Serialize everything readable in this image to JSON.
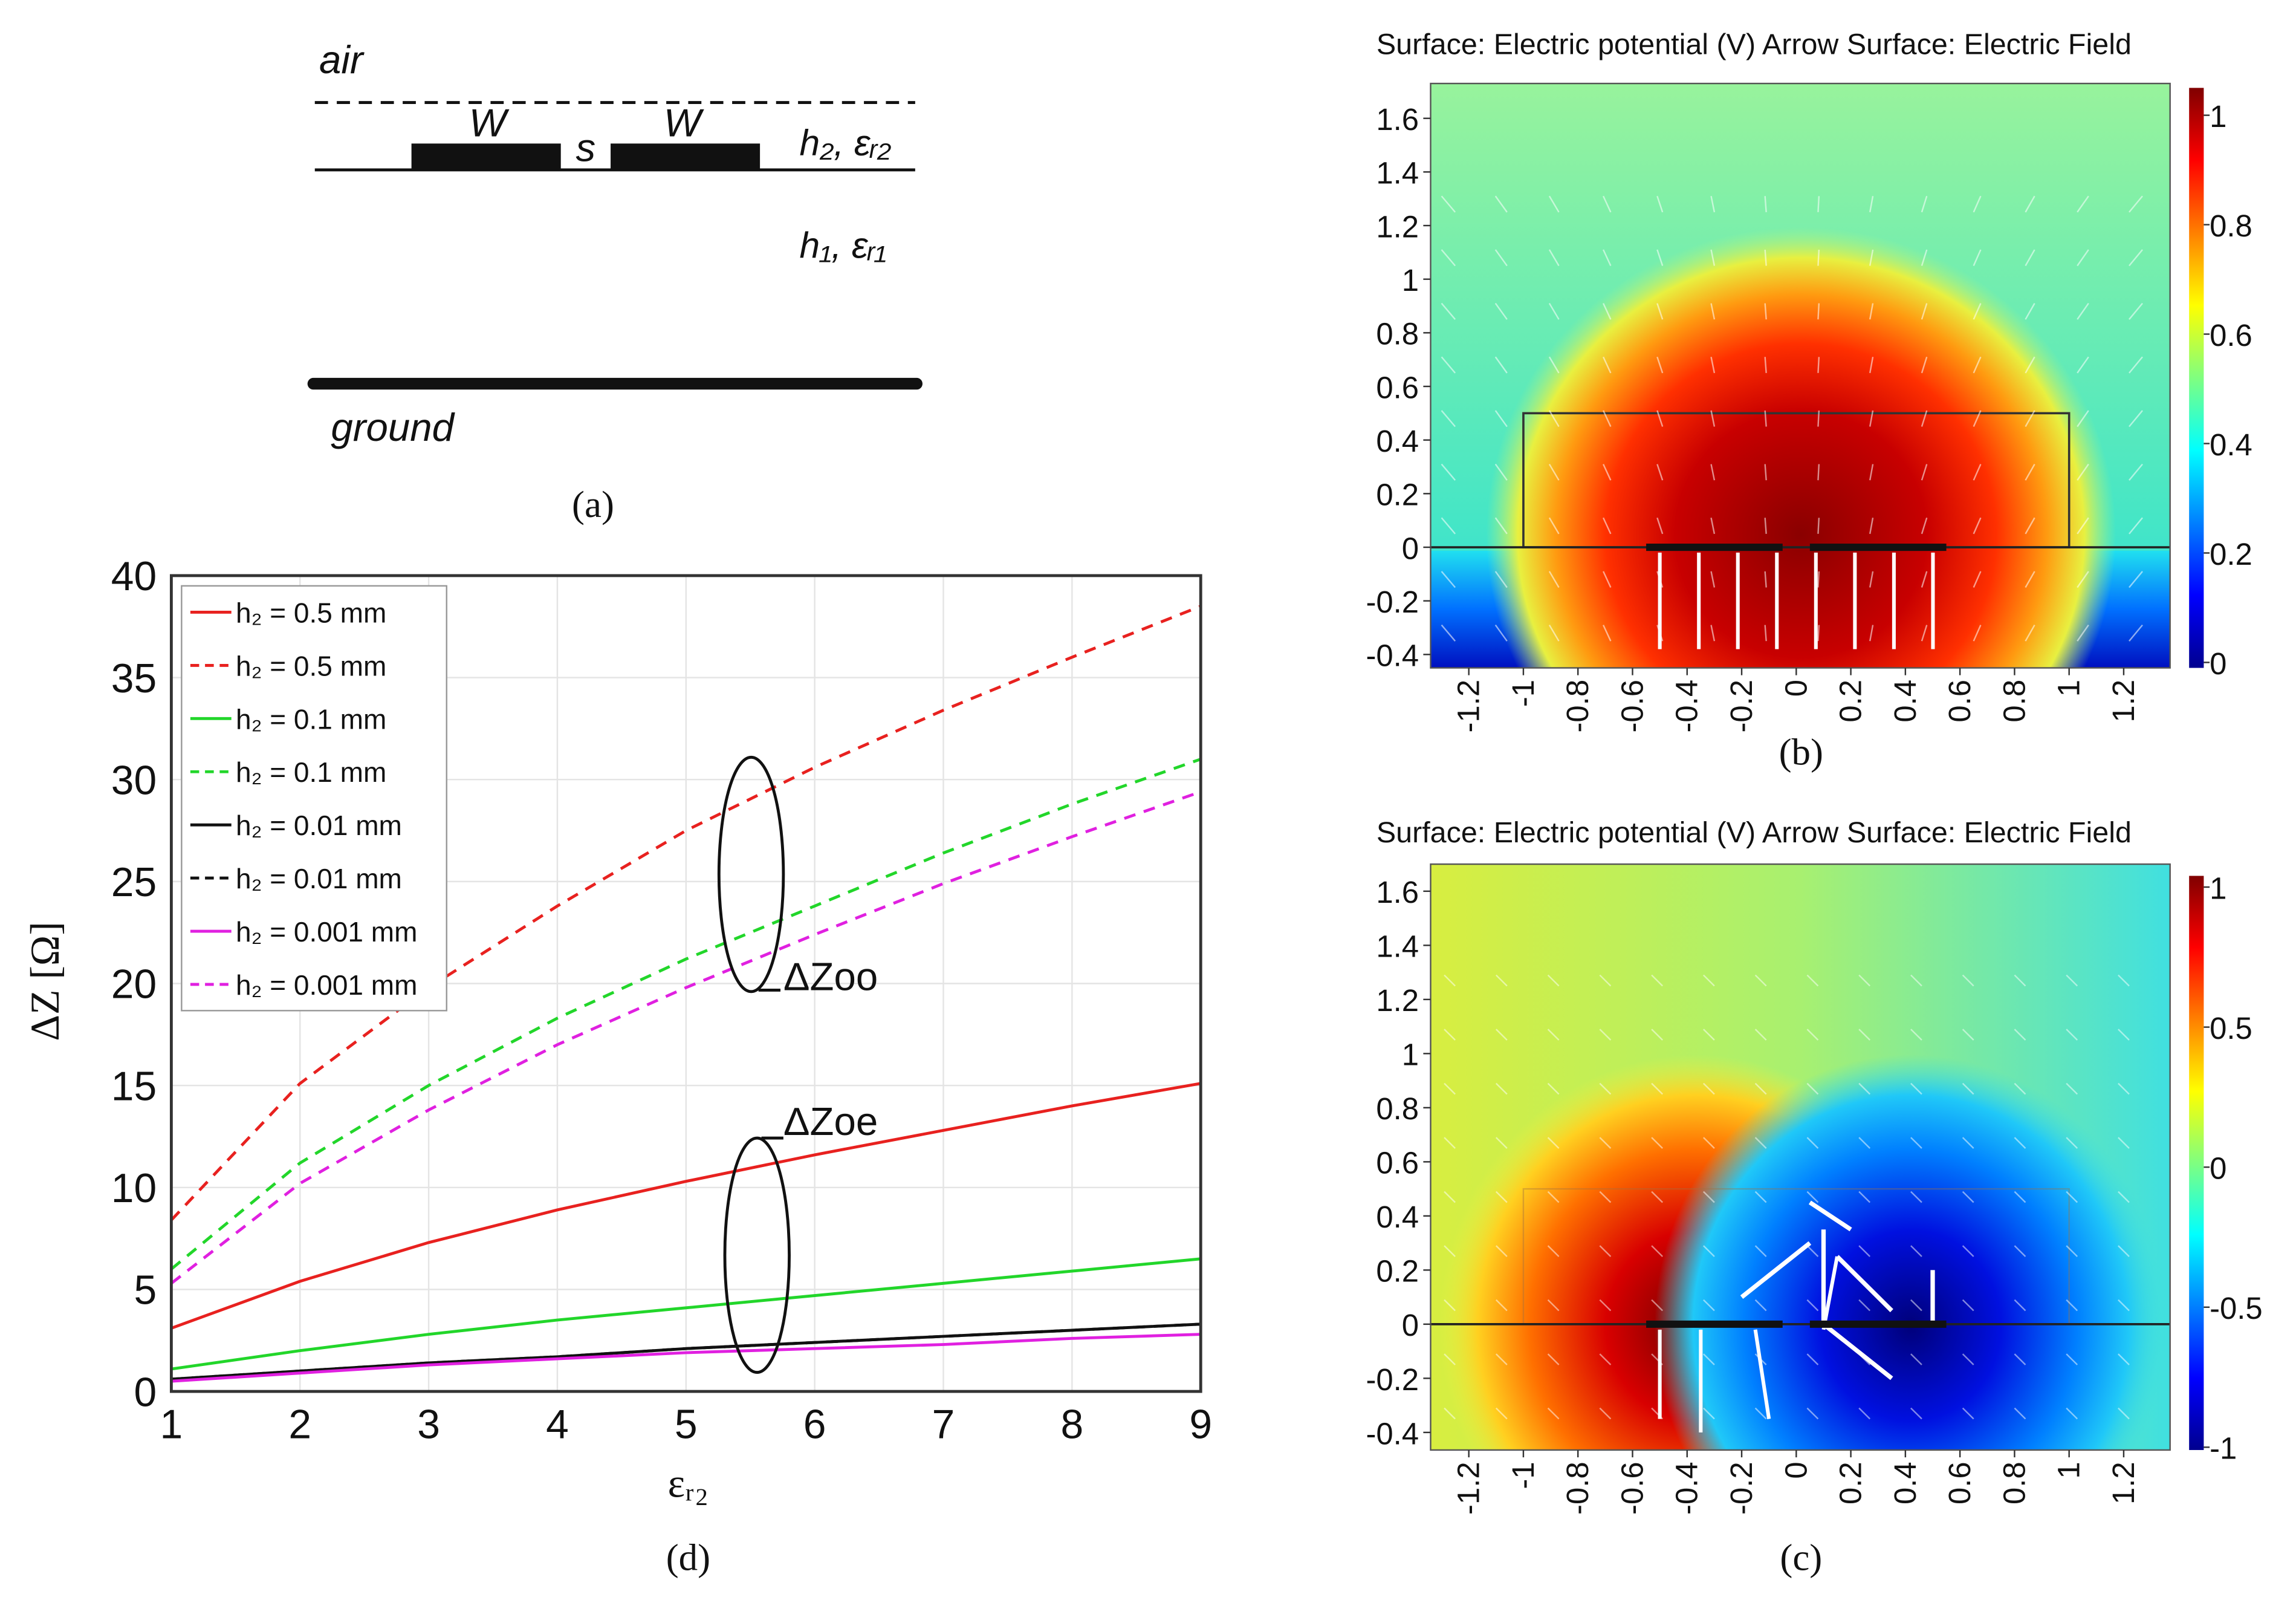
{
  "panel_a": {
    "air": "air",
    "w1": "W",
    "s": "s",
    "w2": "W",
    "layer2": "h₂, εᵣ₂",
    "layer1": "h₁, εᵣ₁",
    "ground": "ground",
    "caption": "(a)"
  },
  "panel_b": {
    "title": "Surface: Electric potential (V) Arrow Surface: Electric Field",
    "caption": "(b)",
    "xlim": [
      -1.34,
      1.37
    ],
    "ylim": [
      -0.45,
      1.73
    ],
    "xticks": [
      -1.2,
      -1,
      -0.8,
      -0.6,
      -0.4,
      -0.2,
      0,
      0.2,
      0.4,
      0.6,
      0.8,
      1,
      1.2
    ],
    "yticks": [
      -0.4,
      -0.2,
      0,
      0.2,
      0.4,
      0.6,
      0.8,
      1,
      1.2,
      1.4,
      1.6
    ],
    "clim": [
      -0.01,
      1.05
    ],
    "cticks": [
      0,
      0.2,
      0.4,
      0.6,
      0.8,
      1
    ]
  },
  "panel_c": {
    "title": "Surface: Electric potential (V) Arrow Surface: Electric Field",
    "caption": "(c)",
    "xlim": [
      -1.34,
      1.37
    ],
    "ylim": [
      -0.465,
      1.7
    ],
    "xticks": [
      -1.2,
      -1,
      -0.8,
      -0.6,
      -0.4,
      -0.2,
      0,
      0.2,
      0.4,
      0.6,
      0.8,
      1,
      1.2
    ],
    "yticks": [
      -0.4,
      -0.2,
      0,
      0.2,
      0.4,
      0.6,
      0.8,
      1,
      1.2,
      1.4,
      1.6
    ],
    "clim": [
      -1.01,
      1.04
    ],
    "cticks": [
      -1,
      -0.5,
      0,
      0.5,
      1
    ]
  },
  "chart_data": {
    "type": "line",
    "caption": "(d)",
    "xlabel": "εᵣ₂",
    "ylabel": "ΔZ [Ω]",
    "annotations": [
      "ΔZoo",
      "ΔZoe"
    ],
    "x": [
      1,
      2,
      3,
      4,
      5,
      6,
      7,
      8,
      9
    ],
    "xlim": [
      1,
      9
    ],
    "ylim": [
      0,
      40
    ],
    "xticks": [
      1,
      2,
      3,
      4,
      5,
      6,
      7,
      8,
      9
    ],
    "yticks": [
      0,
      5,
      10,
      15,
      20,
      25,
      30,
      35,
      40
    ],
    "grid": true,
    "legend": "upper left",
    "series": [
      {
        "name": "h₂ = 0.5 mm",
        "color": "#e8211f",
        "dashed": false,
        "values": [
          3.1,
          5.4,
          7.3,
          8.9,
          10.3,
          11.6,
          12.8,
          14.0,
          15.1
        ]
      },
      {
        "name": "h₂ = 0.5 mm",
        "color": "#e8211f",
        "dashed": true,
        "values": [
          8.4,
          15.1,
          19.8,
          23.8,
          27.5,
          30.6,
          33.4,
          36.0,
          38.5
        ]
      },
      {
        "name": "h₂ = 0.1 mm",
        "color": "#22d62a",
        "dashed": false,
        "values": [
          1.1,
          2.0,
          2.8,
          3.5,
          4.1,
          4.7,
          5.3,
          5.9,
          6.5
        ]
      },
      {
        "name": "h₂ = 0.1 mm",
        "color": "#22d62a",
        "dashed": true,
        "values": [
          6.0,
          11.2,
          15.0,
          18.3,
          21.2,
          23.8,
          26.4,
          28.8,
          31.0
        ]
      },
      {
        "name": "h₂ = 0.01 mm",
        "color": "#111111",
        "dashed": false,
        "values": [
          0.6,
          1.0,
          1.4,
          1.7,
          2.1,
          2.4,
          2.7,
          3.0,
          3.3
        ]
      },
      {
        "name": "h₂ = 0.01 mm",
        "color": "#111111",
        "dashed": true,
        "values": [
          0.6,
          1.0,
          1.4,
          1.7,
          2.1,
          2.4,
          2.7,
          3.0,
          3.3
        ]
      },
      {
        "name": "h₂ = 0.001 mm",
        "color": "#e020e0",
        "dashed": false,
        "values": [
          0.5,
          0.9,
          1.3,
          1.6,
          1.9,
          2.1,
          2.3,
          2.6,
          2.8
        ]
      },
      {
        "name": "h₂ = 0.001 mm",
        "color": "#e020e0",
        "dashed": true,
        "values": [
          5.3,
          10.2,
          13.8,
          17.0,
          19.8,
          22.4,
          24.9,
          27.2,
          29.4
        ]
      }
    ]
  }
}
